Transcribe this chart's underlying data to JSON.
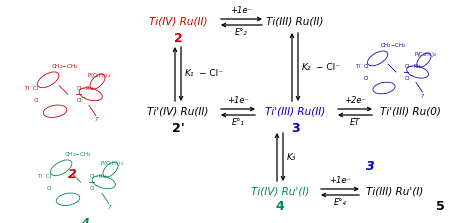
{
  "figsize": [
    4.73,
    2.23
  ],
  "dpi": 100,
  "bg_color": "#ffffff",
  "colors": {
    "red": "#cc0000",
    "blue": "#0000bb",
    "green": "#008855",
    "black": "#000000"
  },
  "scheme": {
    "top_row": {
      "left_label": "Ti(IV) Ru(II)",
      "left_label_color": "#cc0000",
      "left_num": "2",
      "left_num_color": "#cc0000",
      "arrow_top": "+1e⁻",
      "arrow_bot": "E°₂",
      "right_label": "Ti(III) Ru(II)",
      "right_label_color": "#000000"
    },
    "mid_row": {
      "left_label": "Ti'(IV) Ru(II)",
      "left_label_color": "#000000",
      "left_num": "2'",
      "left_num_color": "#000000",
      "arrow_top": "+1e⁻",
      "arrow_bot": "E°₁",
      "mid_label": "Ti'(III) Ru(II)",
      "mid_label_color": "#0000bb",
      "mid_num": "3",
      "mid_num_color": "#0000bb",
      "arrow2_top": "+2e⁻",
      "arrow2_bot": "ET",
      "right_label": "Ti'(III) Ru(0)",
      "right_label_color": "#000000"
    },
    "bot_row": {
      "left_label": "Ti(IV) Ru'(I)",
      "left_label_color": "#008855",
      "left_num": "4",
      "left_num_color": "#008855",
      "arrow_top": "+1e⁻",
      "arrow_bot": "E°₄",
      "right_label": "Ti(III) Ru'(I)",
      "right_label_color": "#000000",
      "right_num": "5",
      "right_num_color": "#000000"
    },
    "K1": "K₁",
    "Cl1": "− Cl⁻",
    "K2": "K₂",
    "Cl2": "− Cl⁻",
    "K3": "K₃"
  },
  "struct2_color": "#cc0000",
  "struct3_color": "#0000bb",
  "struct4_color": "#008855"
}
